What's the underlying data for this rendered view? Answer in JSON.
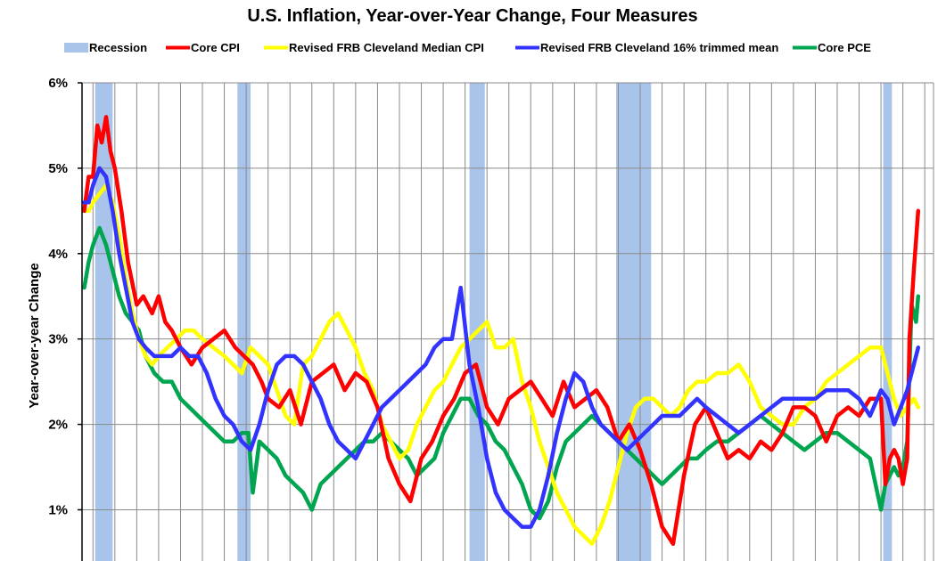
{
  "chart_data": {
    "type": "line",
    "title": "U.S. Inflation, Year-over-Year Change, Four Measures",
    "ylabel": "Year-over-year Change",
    "xlabel": "",
    "xlim": [
      1983.5,
      2022.4
    ],
    "ylim": [
      0.4,
      6.0
    ],
    "yticks": [
      {
        "value": 1,
        "label": "1%"
      },
      {
        "value": 2,
        "label": "2%"
      },
      {
        "value": 3,
        "label": "3%"
      },
      {
        "value": 4,
        "label": "4%"
      },
      {
        "value": 5,
        "label": "5%"
      },
      {
        "value": 6,
        "label": "6%"
      }
    ],
    "x_gridlines": "yearly",
    "grid": true,
    "legend_position": "top",
    "legend": [
      {
        "label": "Recession",
        "color": "#a9c4eb",
        "kind": "box"
      },
      {
        "label": "Core CPI",
        "color": "#ff0000",
        "kind": "line"
      },
      {
        "label": "Revised FRB Cleveland Median CPI",
        "color": "#ffff00",
        "kind": "line"
      },
      {
        "label": "Revised FRB Cleveland 16% trimmed mean",
        "color": "#3333ff",
        "kind": "line"
      },
      {
        "label": "Core PCE",
        "color": "#00a550",
        "kind": "line"
      }
    ],
    "recessions": [
      {
        "start": 1984.1,
        "end": 1984.9
      },
      {
        "start": 1990.6,
        "end": 1991.2
      },
      {
        "start": 2001.2,
        "end": 2001.9
      },
      {
        "start": 2007.9,
        "end": 2009.5
      },
      {
        "start": 2020.1,
        "end": 2020.5
      }
    ],
    "series": [
      {
        "name": "Core CPI",
        "color": "#ff0000",
        "x": [
          1983.6,
          1983.8,
          1984.0,
          1984.2,
          1984.4,
          1984.6,
          1984.8,
          1985.0,
          1985.3,
          1985.6,
          1986.0,
          1986.3,
          1986.7,
          1987.0,
          1987.3,
          1987.6,
          1988.0,
          1988.5,
          1989.0,
          1989.5,
          1990.0,
          1990.5,
          1990.9,
          1991.3,
          1991.7,
          1992.0,
          1992.5,
          1993.0,
          1993.5,
          1994.0,
          1994.5,
          1995.0,
          1995.5,
          1996.0,
          1996.5,
          1997.0,
          1997.5,
          1998.0,
          1998.5,
          1999.0,
          1999.5,
          2000.0,
          2000.5,
          2001.0,
          2001.5,
          2002.0,
          2002.5,
          2003.0,
          2003.5,
          2004.0,
          2004.5,
          2005.0,
          2005.5,
          2006.0,
          2006.5,
          2007.0,
          2007.5,
          2008.0,
          2008.5,
          2009.0,
          2009.5,
          2010.0,
          2010.5,
          2011.0,
          2011.5,
          2012.0,
          2012.5,
          2013.0,
          2013.5,
          2014.0,
          2014.5,
          2015.0,
          2015.5,
          2016.0,
          2016.5,
          2017.0,
          2017.5,
          2018.0,
          2018.5,
          2019.0,
          2019.5,
          2020.0,
          2020.2,
          2020.4,
          2020.6,
          2020.8,
          2021.0,
          2021.2,
          2021.3,
          2021.5,
          2021.7
        ],
        "values": [
          4.5,
          4.9,
          4.9,
          5.5,
          5.3,
          5.6,
          5.2,
          5.0,
          4.5,
          3.9,
          3.4,
          3.5,
          3.3,
          3.5,
          3.2,
          3.1,
          2.9,
          2.7,
          2.9,
          3.0,
          3.1,
          2.9,
          2.8,
          2.7,
          2.5,
          2.3,
          2.2,
          2.4,
          2.0,
          2.5,
          2.6,
          2.7,
          2.4,
          2.6,
          2.5,
          2.2,
          1.6,
          1.3,
          1.1,
          1.6,
          1.8,
          2.1,
          2.3,
          2.6,
          2.7,
          2.2,
          2.0,
          2.3,
          2.4,
          2.5,
          2.3,
          2.1,
          2.5,
          2.2,
          2.3,
          2.4,
          2.2,
          1.8,
          2.0,
          1.7,
          1.3,
          0.8,
          0.6,
          1.4,
          2.0,
          2.2,
          1.9,
          1.6,
          1.7,
          1.6,
          1.8,
          1.7,
          1.9,
          2.2,
          2.2,
          2.1,
          1.8,
          2.1,
          2.2,
          2.1,
          2.3,
          2.3,
          1.3,
          1.6,
          1.7,
          1.6,
          1.3,
          1.6,
          3.0,
          3.8,
          4.5
        ]
      },
      {
        "name": "Revised FRB Cleveland Median CPI",
        "color": "#ffff00",
        "x": [
          1983.6,
          1983.8,
          1984.0,
          1984.3,
          1984.6,
          1984.9,
          1985.2,
          1985.5,
          1985.8,
          1986.1,
          1986.4,
          1986.7,
          1987.0,
          1987.4,
          1987.8,
          1988.2,
          1988.6,
          1989.0,
          1989.5,
          1990.0,
          1990.4,
          1990.8,
          1991.2,
          1991.6,
          1992.0,
          1992.4,
          1992.8,
          1993.2,
          1993.6,
          1994.0,
          1994.4,
          1994.8,
          1995.2,
          1995.6,
          1996.0,
          1996.4,
          1996.8,
          1997.2,
          1997.6,
          1998.0,
          1998.4,
          1998.8,
          1999.2,
          1999.6,
          2000.0,
          2000.4,
          2000.8,
          2001.2,
          2001.6,
          2002.0,
          2002.4,
          2002.8,
          2003.2,
          2003.6,
          2004.0,
          2004.4,
          2004.8,
          2005.2,
          2005.6,
          2006.0,
          2006.4,
          2006.8,
          2007.2,
          2007.6,
          2008.0,
          2008.4,
          2008.8,
          2009.2,
          2009.6,
          2010.0,
          2010.4,
          2010.8,
          2011.2,
          2011.6,
          2012.0,
          2012.5,
          2013.0,
          2013.5,
          2014.0,
          2014.5,
          2015.0,
          2015.5,
          2016.0,
          2016.5,
          2017.0,
          2017.5,
          2018.0,
          2018.5,
          2019.0,
          2019.5,
          2020.0,
          2020.3,
          2020.6,
          2020.9,
          2021.2,
          2021.5,
          2021.7
        ],
        "values": [
          4.5,
          4.5,
          4.6,
          4.7,
          4.8,
          4.6,
          4.2,
          3.7,
          3.3,
          3.0,
          2.8,
          2.7,
          2.8,
          2.9,
          3.0,
          3.1,
          3.1,
          3.0,
          2.9,
          2.8,
          2.7,
          2.6,
          2.9,
          2.8,
          2.7,
          2.4,
          2.1,
          2.0,
          2.7,
          2.8,
          3.0,
          3.2,
          3.3,
          3.1,
          2.9,
          2.6,
          2.4,
          2.0,
          1.8,
          1.6,
          1.7,
          2.0,
          2.2,
          2.4,
          2.5,
          2.7,
          2.9,
          3.0,
          3.1,
          3.2,
          2.9,
          2.9,
          3.0,
          2.5,
          2.2,
          1.8,
          1.5,
          1.2,
          1.0,
          0.8,
          0.7,
          0.6,
          0.8,
          1.1,
          1.5,
          1.9,
          2.2,
          2.3,
          2.3,
          2.2,
          2.1,
          2.2,
          2.4,
          2.5,
          2.5,
          2.6,
          2.6,
          2.7,
          2.5,
          2.2,
          2.1,
          2.0,
          2.0,
          2.2,
          2.3,
          2.5,
          2.6,
          2.7,
          2.8,
          2.9,
          2.9,
          2.6,
          2.3,
          2.1,
          2.2,
          2.3,
          2.2
        ]
      },
      {
        "name": "Revised FRB Cleveland 16% trimmed mean",
        "color": "#3333ff",
        "x": [
          1983.6,
          1983.8,
          1984.0,
          1984.3,
          1984.6,
          1984.9,
          1985.2,
          1985.5,
          1985.8,
          1986.1,
          1986.4,
          1986.8,
          1987.2,
          1987.6,
          1988.0,
          1988.4,
          1988.8,
          1989.2,
          1989.6,
          1990.0,
          1990.4,
          1990.8,
          1991.2,
          1991.6,
          1992.0,
          1992.4,
          1992.8,
          1993.2,
          1993.6,
          1994.0,
          1994.4,
          1994.8,
          1995.2,
          1995.6,
          1996.0,
          1996.4,
          1996.8,
          1997.2,
          1997.6,
          1998.0,
          1998.4,
          1998.8,
          1999.2,
          1999.6,
          2000.0,
          2000.4,
          2000.8,
          2001.2,
          2001.6,
          2002.0,
          2002.4,
          2002.8,
          2003.2,
          2003.6,
          2004.0,
          2004.4,
          2004.8,
          2005.2,
          2005.6,
          2006.0,
          2006.4,
          2006.8,
          2007.2,
          2007.6,
          2008.0,
          2008.4,
          2008.8,
          2009.2,
          2009.6,
          2010.0,
          2010.4,
          2010.8,
          2011.2,
          2011.6,
          2012.0,
          2012.5,
          2013.0,
          2013.5,
          2014.0,
          2014.5,
          2015.0,
          2015.5,
          2016.0,
          2016.5,
          2017.0,
          2017.5,
          2018.0,
          2018.5,
          2019.0,
          2019.5,
          2020.0,
          2020.3,
          2020.6,
          2020.9,
          2021.2,
          2021.5,
          2021.7
        ],
        "values": [
          4.6,
          4.6,
          4.8,
          5.0,
          4.9,
          4.5,
          4.0,
          3.6,
          3.2,
          3.0,
          2.9,
          2.8,
          2.8,
          2.8,
          2.9,
          2.8,
          2.8,
          2.6,
          2.3,
          2.1,
          2.0,
          1.8,
          1.7,
          2.0,
          2.4,
          2.7,
          2.8,
          2.8,
          2.7,
          2.5,
          2.3,
          2.0,
          1.8,
          1.7,
          1.6,
          1.8,
          2.0,
          2.2,
          2.3,
          2.4,
          2.5,
          2.6,
          2.7,
          2.9,
          3.0,
          3.0,
          3.6,
          2.7,
          2.2,
          1.6,
          1.2,
          1.0,
          0.9,
          0.8,
          0.8,
          1.0,
          1.4,
          1.9,
          2.3,
          2.6,
          2.5,
          2.2,
          2.0,
          1.9,
          1.8,
          1.7,
          1.8,
          1.9,
          2.0,
          2.1,
          2.1,
          2.1,
          2.2,
          2.3,
          2.2,
          2.1,
          2.0,
          1.9,
          2.0,
          2.1,
          2.2,
          2.3,
          2.3,
          2.3,
          2.3,
          2.4,
          2.4,
          2.4,
          2.3,
          2.1,
          2.4,
          2.3,
          2.0,
          2.2,
          2.4,
          2.7,
          2.9
        ]
      },
      {
        "name": "Core PCE",
        "color": "#00a550",
        "x": [
          1983.6,
          1983.8,
          1984.0,
          1984.3,
          1984.6,
          1984.9,
          1985.2,
          1985.5,
          1985.8,
          1986.1,
          1986.4,
          1986.8,
          1987.2,
          1987.6,
          1988.0,
          1988.4,
          1988.8,
          1989.2,
          1989.6,
          1990.0,
          1990.4,
          1990.8,
          1991.1,
          1991.3,
          1991.6,
          1992.0,
          1992.4,
          1992.8,
          1993.2,
          1993.6,
          1994.0,
          1994.4,
          1994.8,
          1995.2,
          1995.6,
          1996.0,
          1996.4,
          1996.8,
          1997.2,
          1997.6,
          1998.0,
          1998.4,
          1998.8,
          1999.2,
          1999.6,
          2000.0,
          2000.4,
          2000.8,
          2001.2,
          2001.6,
          2002.0,
          2002.4,
          2002.8,
          2003.2,
          2003.6,
          2004.0,
          2004.4,
          2004.8,
          2005.2,
          2005.6,
          2006.0,
          2006.4,
          2006.8,
          2007.2,
          2007.6,
          2008.0,
          2008.4,
          2008.8,
          2009.2,
          2009.6,
          2010.0,
          2010.4,
          2010.8,
          2011.2,
          2011.6,
          2012.0,
          2012.5,
          2013.0,
          2013.5,
          2014.0,
          2014.5,
          2015.0,
          2015.5,
          2016.0,
          2016.5,
          2017.0,
          2017.5,
          2018.0,
          2018.5,
          2019.0,
          2019.5,
          2020.0,
          2020.2,
          2020.4,
          2020.6,
          2020.8,
          2021.0,
          2021.2,
          2021.4,
          2021.6,
          2021.7
        ],
        "values": [
          3.6,
          3.9,
          4.1,
          4.3,
          4.1,
          3.8,
          3.5,
          3.3,
          3.2,
          3.1,
          2.8,
          2.6,
          2.5,
          2.5,
          2.3,
          2.2,
          2.1,
          2.0,
          1.9,
          1.8,
          1.8,
          1.9,
          1.9,
          1.2,
          1.8,
          1.7,
          1.6,
          1.4,
          1.3,
          1.2,
          1.0,
          1.3,
          1.4,
          1.5,
          1.6,
          1.7,
          1.8,
          1.8,
          1.9,
          1.8,
          1.7,
          1.6,
          1.4,
          1.5,
          1.6,
          1.9,
          2.1,
          2.3,
          2.3,
          2.1,
          2.0,
          1.8,
          1.7,
          1.5,
          1.3,
          1.0,
          0.9,
          1.1,
          1.5,
          1.8,
          1.9,
          2.0,
          2.1,
          2.0,
          1.9,
          1.8,
          1.7,
          1.6,
          1.5,
          1.4,
          1.3,
          1.4,
          1.5,
          1.6,
          1.6,
          1.7,
          1.8,
          1.8,
          1.9,
          2.0,
          2.1,
          2.0,
          1.9,
          1.8,
          1.7,
          1.8,
          1.9,
          1.9,
          1.8,
          1.7,
          1.6,
          1.0,
          1.3,
          1.4,
          1.5,
          1.4,
          1.5,
          1.8,
          3.4,
          3.2,
          3.5
        ]
      }
    ]
  }
}
